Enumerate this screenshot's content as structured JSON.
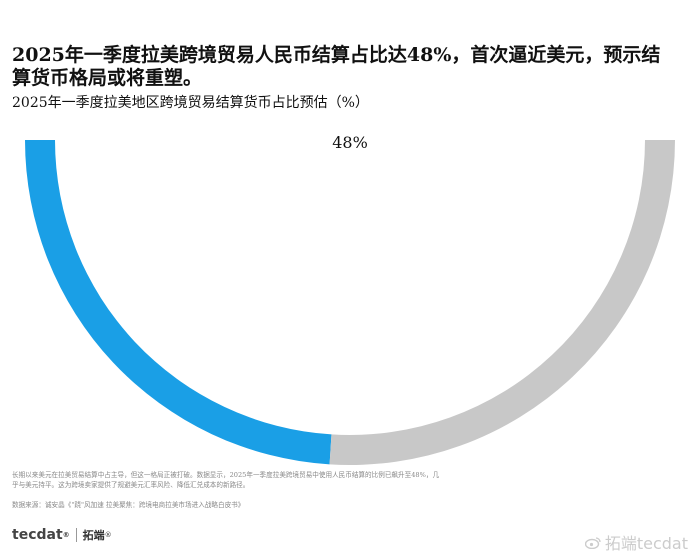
{
  "headline": "2025年一季度拉美跨境贸易人民币结算占比达48%，首次逼近美元，预示结算货币格局或将重塑。",
  "subtitle": "2025年一季度拉美地区跨境贸易结算货币占比预估（%）",
  "chart_data": {
    "type": "pie",
    "variant": "half-donut",
    "title": "2025年一季度拉美地区跨境贸易结算货币占比预估（%）",
    "slices": [
      {
        "value": 48,
        "label": "48%",
        "color": "#1a9fe6"
      },
      {
        "value": 52,
        "label": "",
        "color": "#c8c8c8"
      }
    ],
    "center_label": "48%"
  },
  "notes": {
    "body": "长期以来美元在拉美贸易结算中占主导，但这一格局正被打破。数据显示，2025年一季度拉美跨境贸易中使用人民币结算的比例已飙升至48%，几乎与美元持平。这为跨境卖家提供了规避美元汇率风险、降低汇兑成本的新路径。",
    "source": "数据来源：诚安晶《\"跷\"风加速 拉美聚焦：跨境电商拉美市场进入战略白皮书》"
  },
  "brand": {
    "logo_text": "tecdat",
    "logo_mark": "®",
    "cn_name": "拓端",
    "cn_mark": "®"
  },
  "watermark": {
    "text": "拓端tecdat",
    "icon": "weibo-icon"
  }
}
